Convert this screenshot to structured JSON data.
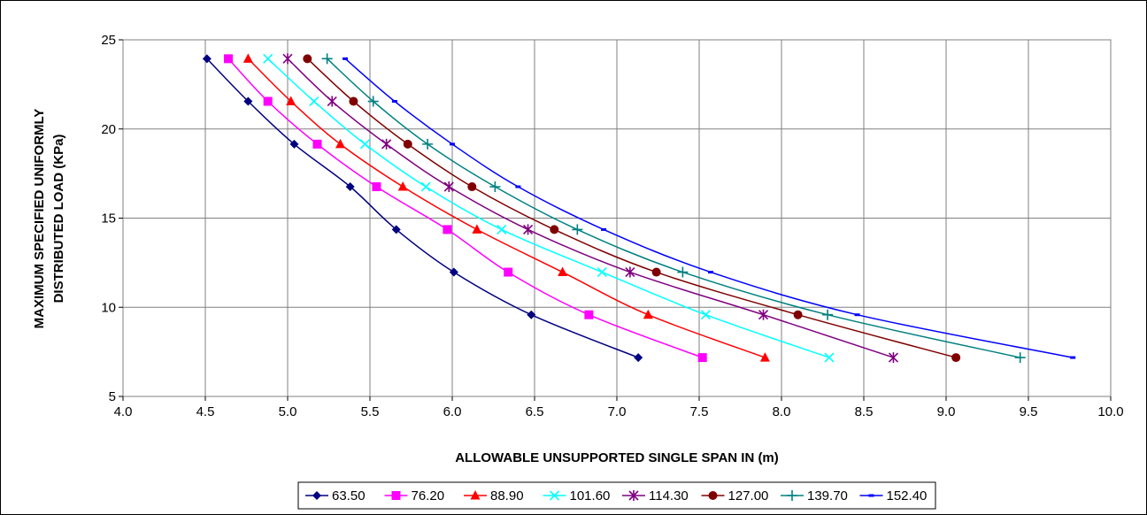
{
  "chart_data": {
    "type": "line",
    "xlabel": "ALLOWABLE UNSUPPORTED SINGLE SPAN IN (m)",
    "ylabel_line1": "MAXIMUM SPECIFIED UNIFORMLY",
    "ylabel_line2": "DISTRIBUTED LOAD (KPa)",
    "xlim": [
      4.0,
      10.0
    ],
    "ylim": [
      5,
      25
    ],
    "xticks": [
      "4.0",
      "4.5",
      "5.0",
      "5.5",
      "6.0",
      "6.5",
      "7.0",
      "7.5",
      "8.0",
      "8.5",
      "9.0",
      "9.5",
      "10.0"
    ],
    "yticks": [
      "5",
      "10",
      "15",
      "20",
      "25"
    ],
    "grid": true,
    "legend_position": "bottom",
    "y": [
      23.94,
      21.55,
      19.15,
      16.76,
      14.36,
      11.97,
      9.58,
      7.18
    ],
    "series": [
      {
        "name": "63.50",
        "color": "#000080",
        "marker": "diamond",
        "x": [
          4.51,
          4.76,
          5.04,
          5.38,
          5.66,
          6.01,
          6.48,
          7.13
        ]
      },
      {
        "name": "76.20",
        "color": "#ff00ff",
        "marker": "square",
        "x": [
          4.64,
          4.88,
          5.18,
          5.54,
          5.97,
          6.34,
          6.83,
          7.52
        ]
      },
      {
        "name": "88.90",
        "color": "#ff0000",
        "marker": "triangle",
        "x": [
          4.76,
          5.02,
          5.32,
          5.7,
          6.15,
          6.67,
          7.19,
          7.9
        ]
      },
      {
        "name": "101.60",
        "color": "#00ffff",
        "marker": "x",
        "x": [
          4.88,
          5.16,
          5.47,
          5.84,
          6.3,
          6.91,
          7.54,
          8.29
        ]
      },
      {
        "name": "114.30",
        "color": "#800080",
        "marker": "star",
        "x": [
          5.0,
          5.27,
          5.6,
          5.98,
          6.46,
          7.08,
          7.89,
          8.68
        ]
      },
      {
        "name": "127.00",
        "color": "#800000",
        "marker": "circle",
        "x": [
          5.12,
          5.4,
          5.73,
          6.12,
          6.62,
          7.24,
          8.1,
          9.06
        ]
      },
      {
        "name": "139.70",
        "color": "#008080",
        "marker": "plus",
        "x": [
          5.24,
          5.52,
          5.85,
          6.26,
          6.76,
          7.4,
          8.28,
          9.45
        ]
      },
      {
        "name": "152.40",
        "color": "#0000ff",
        "marker": "dash",
        "x": [
          5.35,
          5.65,
          6.0,
          6.4,
          6.92,
          7.57,
          8.46,
          9.77
        ]
      }
    ]
  }
}
